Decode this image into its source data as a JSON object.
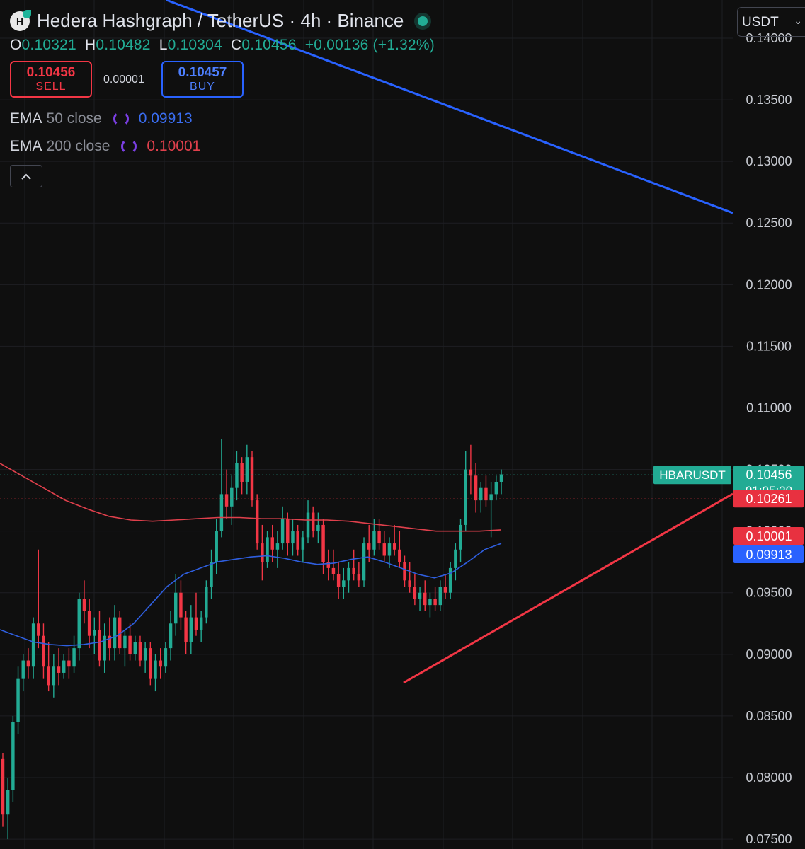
{
  "header": {
    "logo_letter": "H",
    "title": "Hedera Hashgraph / TetherUS · 4h · Binance",
    "status_color": "#22ab94"
  },
  "ohlc": {
    "o_label": "O",
    "o": "0.10321",
    "h_label": "H",
    "h": "0.10482",
    "l_label": "L",
    "l": "0.10304",
    "c_label": "C",
    "c": "0.10456",
    "change": "+0.00136 (+1.32%)"
  },
  "trade": {
    "sell_price": "0.10456",
    "sell_label": "SELL",
    "spread": "0.00001",
    "buy_price": "0.10457",
    "buy_label": "BUY"
  },
  "indicators": [
    {
      "name": "EMA",
      "params": "50 close",
      "value": "0.09913",
      "color": "#3a6df0"
    },
    {
      "name": "EMA",
      "params": "200 close",
      "value": "0.10001",
      "color": "#e0404c"
    }
  ],
  "collapse_icon": "chevron-up-icon",
  "currency_select": "USDT",
  "colors": {
    "up": "#22ab94",
    "down": "#f23645",
    "ema50": "#2f5fe0",
    "ema200": "#e0404c",
    "trend_blue": "#2962ff",
    "trend_red": "#f23645"
  },
  "chart_data": {
    "type": "candlestick",
    "symbol": "HBARUSDT",
    "interval": "4h",
    "y_ticks": [
      "0.14000",
      "0.13500",
      "0.13000",
      "0.12500",
      "0.12000",
      "0.11500",
      "0.11000",
      "0.10500",
      "0.10000",
      "0.09500",
      "0.09000",
      "0.08500",
      "0.08000",
      "0.07500"
    ],
    "ylim": [
      0.0742,
      0.1431
    ],
    "grid": true,
    "price_labels": [
      {
        "name": "HBARUSDT",
        "value": "0.10456",
        "countdown": "01:05:20",
        "color": "#22ab94"
      },
      {
        "value": "0.10261",
        "color": "#f23645"
      },
      {
        "value": "0.10001",
        "color": "#f23645"
      },
      {
        "value": "0.09913",
        "color": "#2962ff"
      }
    ],
    "candles": [
      [
        0.0815,
        0.082,
        0.076,
        0.077
      ],
      [
        0.077,
        0.08,
        0.075,
        0.079
      ],
      [
        0.079,
        0.085,
        0.078,
        0.0845
      ],
      [
        0.0845,
        0.089,
        0.0835,
        0.088
      ],
      [
        0.088,
        0.09,
        0.087,
        0.0895
      ],
      [
        0.0895,
        0.0905,
        0.088,
        0.089
      ],
      [
        0.089,
        0.093,
        0.088,
        0.0925
      ],
      [
        0.0925,
        0.0985,
        0.0905,
        0.0915
      ],
      [
        0.0915,
        0.0925,
        0.088,
        0.089
      ],
      [
        0.089,
        0.091,
        0.087,
        0.0875
      ],
      [
        0.0875,
        0.09,
        0.0865,
        0.089
      ],
      [
        0.089,
        0.0905,
        0.0875,
        0.0885
      ],
      [
        0.0885,
        0.09,
        0.088,
        0.0895
      ],
      [
        0.0895,
        0.0905,
        0.088,
        0.089
      ],
      [
        0.089,
        0.0915,
        0.0885,
        0.0905
      ],
      [
        0.0905,
        0.095,
        0.0895,
        0.0945
      ],
      [
        0.0945,
        0.096,
        0.0925,
        0.0935
      ],
      [
        0.0935,
        0.0945,
        0.0905,
        0.0915
      ],
      [
        0.0915,
        0.093,
        0.09,
        0.092
      ],
      [
        0.092,
        0.0935,
        0.089,
        0.0895
      ],
      [
        0.0895,
        0.0925,
        0.0885,
        0.0915
      ],
      [
        0.0915,
        0.093,
        0.0895,
        0.0905
      ],
      [
        0.0905,
        0.094,
        0.0895,
        0.093
      ],
      [
        0.093,
        0.0935,
        0.09,
        0.0905
      ],
      [
        0.0905,
        0.092,
        0.089,
        0.0915
      ],
      [
        0.0915,
        0.0925,
        0.0895,
        0.09
      ],
      [
        0.09,
        0.0915,
        0.0895,
        0.091
      ],
      [
        0.091,
        0.0915,
        0.089,
        0.0895
      ],
      [
        0.0895,
        0.091,
        0.0885,
        0.0905
      ],
      [
        0.0905,
        0.091,
        0.0875,
        0.088
      ],
      [
        0.088,
        0.09,
        0.087,
        0.0895
      ],
      [
        0.0895,
        0.0905,
        0.088,
        0.089
      ],
      [
        0.089,
        0.091,
        0.0885,
        0.0905
      ],
      [
        0.0905,
        0.0935,
        0.0895,
        0.0925
      ],
      [
        0.0925,
        0.0965,
        0.0915,
        0.095
      ],
      [
        0.095,
        0.096,
        0.092,
        0.093
      ],
      [
        0.093,
        0.0935,
        0.09,
        0.091
      ],
      [
        0.091,
        0.094,
        0.09,
        0.093
      ],
      [
        0.093,
        0.095,
        0.0915,
        0.092
      ],
      [
        0.092,
        0.0935,
        0.091,
        0.093
      ],
      [
        0.093,
        0.096,
        0.0925,
        0.0955
      ],
      [
        0.0955,
        0.0985,
        0.0945,
        0.0975
      ],
      [
        0.0975,
        0.101,
        0.0965,
        0.1
      ],
      [
        0.1,
        0.1075,
        0.0995,
        0.103
      ],
      [
        0.103,
        0.105,
        0.101,
        0.102
      ],
      [
        0.102,
        0.1045,
        0.1005,
        0.1035
      ],
      [
        0.1035,
        0.1065,
        0.1025,
        0.1055
      ],
      [
        0.1055,
        0.106,
        0.103,
        0.104
      ],
      [
        0.104,
        0.107,
        0.103,
        0.106
      ],
      [
        0.106,
        0.1065,
        0.102,
        0.1025
      ],
      [
        0.1025,
        0.103,
        0.0985,
        0.099
      ],
      [
        0.099,
        0.1005,
        0.096,
        0.0975
      ],
      [
        0.0975,
        0.1,
        0.097,
        0.0995
      ],
      [
        0.0995,
        0.1005,
        0.0975,
        0.0985
      ],
      [
        0.0985,
        0.1,
        0.097,
        0.099
      ],
      [
        0.099,
        0.102,
        0.0985,
        0.101
      ],
      [
        0.101,
        0.1015,
        0.098,
        0.099
      ],
      [
        0.099,
        0.101,
        0.098,
        0.1
      ],
      [
        0.1,
        0.1005,
        0.098,
        0.0985
      ],
      [
        0.0985,
        0.1,
        0.0975,
        0.0995
      ],
      [
        0.0995,
        0.1025,
        0.099,
        0.1015
      ],
      [
        0.1015,
        0.102,
        0.0995,
        0.1
      ],
      [
        0.1,
        0.1015,
        0.099,
        0.1005
      ],
      [
        0.1005,
        0.101,
        0.0965,
        0.0975
      ],
      [
        0.0975,
        0.0985,
        0.096,
        0.097
      ],
      [
        0.097,
        0.0985,
        0.096,
        0.0965
      ],
      [
        0.0965,
        0.0975,
        0.0945,
        0.0955
      ],
      [
        0.0955,
        0.097,
        0.0945,
        0.096
      ],
      [
        0.096,
        0.0975,
        0.095,
        0.097
      ],
      [
        0.097,
        0.0985,
        0.096,
        0.0965
      ],
      [
        0.0965,
        0.0975,
        0.0955,
        0.096
      ],
      [
        0.096,
        0.0995,
        0.0955,
        0.099
      ],
      [
        0.099,
        0.1005,
        0.0975,
        0.0985
      ],
      [
        0.0985,
        0.101,
        0.098,
        0.1
      ],
      [
        0.1,
        0.101,
        0.0985,
        0.099
      ],
      [
        0.099,
        0.1,
        0.0975,
        0.098
      ],
      [
        0.098,
        0.0995,
        0.097,
        0.099
      ],
      [
        0.099,
        0.1005,
        0.098,
        0.0985
      ],
      [
        0.0985,
        0.1,
        0.097,
        0.0975
      ],
      [
        0.0975,
        0.098,
        0.0955,
        0.096
      ],
      [
        0.096,
        0.0975,
        0.095,
        0.0955
      ],
      [
        0.0955,
        0.0965,
        0.094,
        0.0945
      ],
      [
        0.0945,
        0.0955,
        0.0935,
        0.095
      ],
      [
        0.095,
        0.096,
        0.0935,
        0.094
      ],
      [
        0.094,
        0.095,
        0.093,
        0.0945
      ],
      [
        0.0945,
        0.0955,
        0.0935,
        0.094
      ],
      [
        0.094,
        0.096,
        0.0935,
        0.0955
      ],
      [
        0.0955,
        0.0965,
        0.0945,
        0.095
      ],
      [
        0.095,
        0.0975,
        0.0945,
        0.097
      ],
      [
        0.097,
        0.099,
        0.096,
        0.0985
      ],
      [
        0.0985,
        0.101,
        0.0975,
        0.1005
      ],
      [
        0.1005,
        0.1065,
        0.1,
        0.105
      ],
      [
        0.105,
        0.107,
        0.103,
        0.1045
      ],
      [
        0.1045,
        0.1055,
        0.1015,
        0.1025
      ],
      [
        0.1025,
        0.104,
        0.1015,
        0.1035
      ],
      [
        0.1035,
        0.1045,
        0.102,
        0.1025
      ],
      [
        0.1025,
        0.104,
        0.0995,
        0.103
      ],
      [
        0.103,
        0.1045,
        0.1025,
        0.104
      ],
      [
        0.104,
        0.105,
        0.103,
        0.1046
      ]
    ],
    "ema50": [
      0.092,
      0.0915,
      0.091,
      0.0908,
      0.0907,
      0.0908,
      0.091,
      0.0915,
      0.0925,
      0.094,
      0.0955,
      0.0965,
      0.097,
      0.0975,
      0.0977,
      0.0979,
      0.098,
      0.0978,
      0.0975,
      0.0973,
      0.0974,
      0.0977,
      0.0979,
      0.0975,
      0.097,
      0.0965,
      0.0962,
      0.0966,
      0.0975,
      0.0985,
      0.099
    ],
    "ema200": [
      0.1055,
      0.1045,
      0.1035,
      0.1025,
      0.1018,
      0.1012,
      0.1009,
      0.1008,
      0.1009,
      0.101,
      0.1011,
      0.1011,
      0.101,
      0.101,
      0.1009,
      0.1009,
      0.1008,
      0.1006,
      0.1004,
      0.1002,
      0.1,
      0.1,
      0.1,
      0.1001
    ],
    "trendlines": [
      {
        "color": "blue"
      },
      {
        "color": "red"
      }
    ]
  }
}
